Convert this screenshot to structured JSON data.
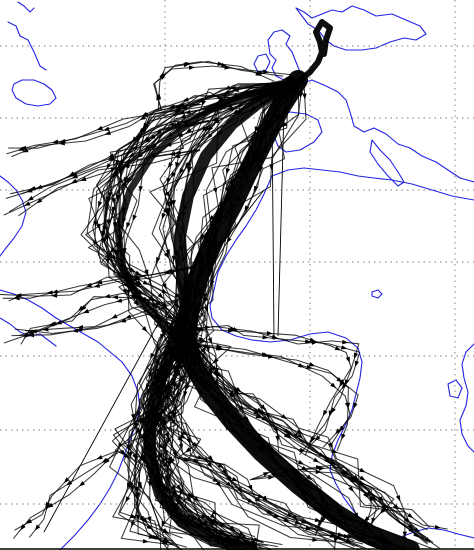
{
  "map": {
    "type": "ship-track map",
    "colors": {
      "background": "#ffffff",
      "coastline": "#2323e6",
      "tracks": "#000000",
      "grid": "#7a7a7a"
    },
    "gridlines": {
      "style": "dotted",
      "vertical_count": 3,
      "horizontal_count": 7
    },
    "features": [
      "coastline",
      "ship-tracks",
      "gridlines",
      "direction-arrows"
    ]
  }
}
